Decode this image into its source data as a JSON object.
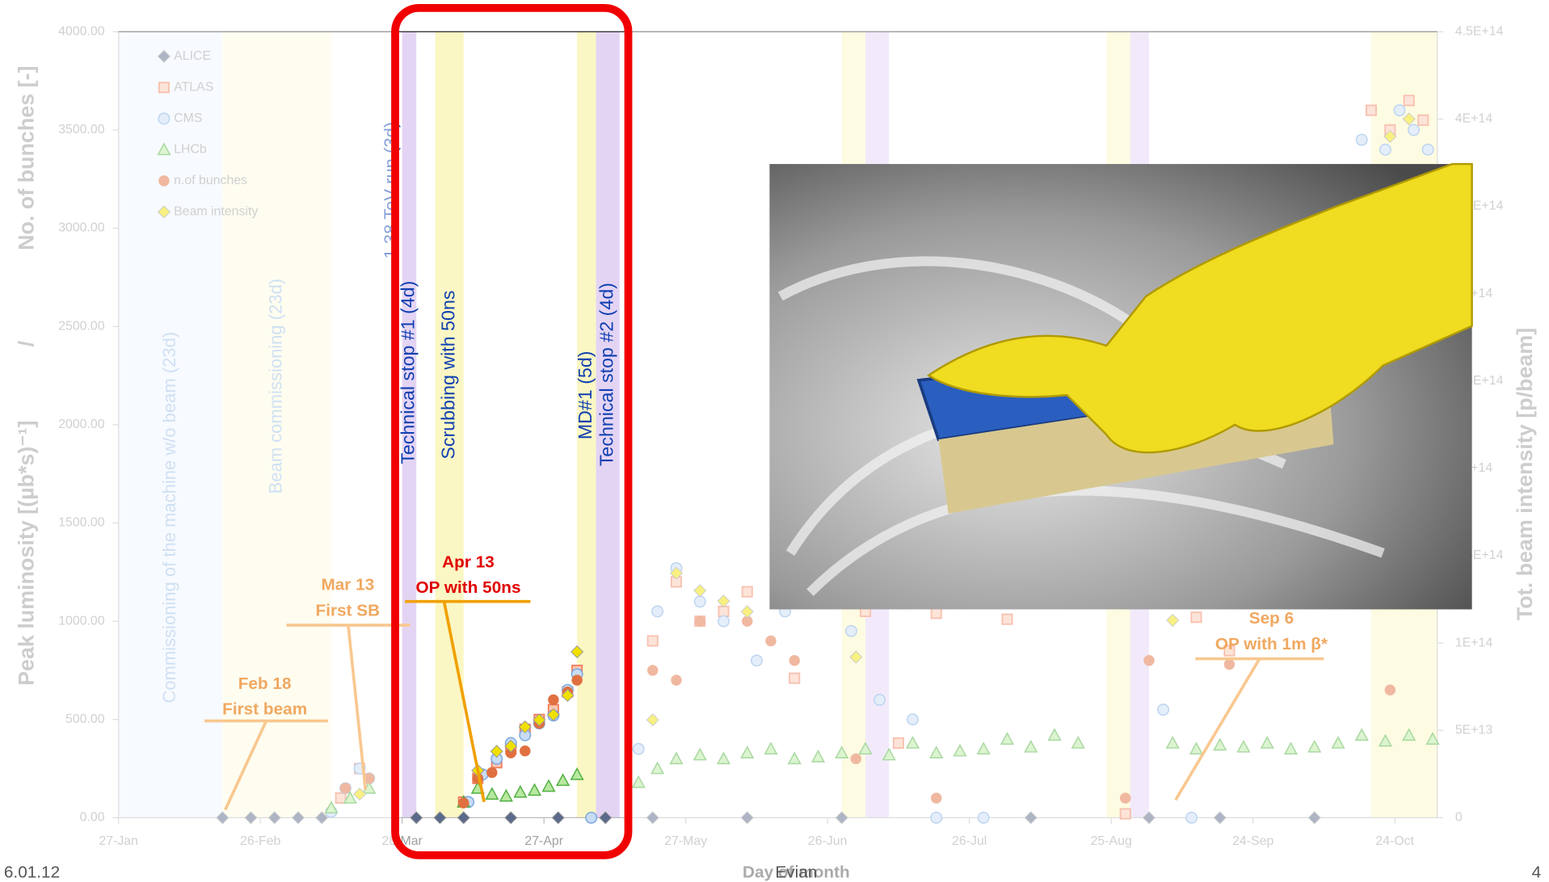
{
  "chart_data": {
    "type": "scatter",
    "x_label": "Day of month",
    "y_label": "Peak luminosity [(µb*s)⁻¹]",
    "y_label_separator": "/",
    "y_label_2": "No. of bunches [-]",
    "y2_label": "Tot. beam intensity [p/beam]",
    "xlim": [
      27,
      306
    ],
    "xticks": [
      {
        "value": 27,
        "label": "27-Jan"
      },
      {
        "value": 57,
        "label": "26-Feb"
      },
      {
        "value": 87,
        "label": "28-Mar"
      },
      {
        "value": 117,
        "label": "27-Apr"
      },
      {
        "value": 147,
        "label": "27-May"
      },
      {
        "value": 177,
        "label": "26-Jun"
      },
      {
        "value": 207,
        "label": "26-Jul"
      },
      {
        "value": 237,
        "label": "25-Aug"
      },
      {
        "value": 267,
        "label": "24-Sep"
      },
      {
        "value": 297,
        "label": "24-Oct"
      }
    ],
    "ylim": [
      0,
      4000
    ],
    "yticks": [
      {
        "value": 0,
        "label": "0.00"
      },
      {
        "value": 500,
        "label": "500.00"
      },
      {
        "value": 1000,
        "label": "1000.00"
      },
      {
        "value": 1500,
        "label": "1500.00"
      },
      {
        "value": 2000,
        "label": "2000.00"
      },
      {
        "value": 2500,
        "label": "2500.00"
      },
      {
        "value": 3000,
        "label": "3000.00"
      },
      {
        "value": 3500,
        "label": "3500.00"
      },
      {
        "value": 4000,
        "label": "4000.00"
      }
    ],
    "y2lim": [
      0,
      450000000000000.0
    ],
    "y2ticks": [
      {
        "value": 0,
        "label": "0"
      },
      {
        "value": 50000000000000.0,
        "label": "5E+13"
      },
      {
        "value": 100000000000000.0,
        "label": "1E+14"
      },
      {
        "value": 150000000000000.0,
        "label": "1.5E+14"
      },
      {
        "value": 200000000000000.0,
        "label": "2E+14"
      },
      {
        "value": 250000000000000.0,
        "label": "2.5E+14"
      },
      {
        "value": 300000000000000.0,
        "label": "3E+14"
      },
      {
        "value": 350000000000000.0,
        "label": "3.5E+14"
      },
      {
        "value": 400000000000000.0,
        "label": "4E+14"
      },
      {
        "value": 450000000000000.0,
        "label": "4.5E+14"
      }
    ],
    "grid": false,
    "legend": "upper left",
    "series": [
      {
        "name": "ALICE",
        "marker": "diamond",
        "color": "#5b6a8a",
        "x": [
          49,
          55,
          60,
          65,
          70,
          90,
          95,
          100,
          110,
          120,
          130,
          140,
          160,
          180,
          200,
          220,
          245,
          260,
          280
        ],
        "values": [
          0,
          0,
          0,
          0,
          0,
          0,
          0,
          0,
          0,
          0,
          0,
          0,
          0,
          0,
          0,
          0,
          0,
          0,
          0
        ]
      },
      {
        "name": "ATLAS",
        "marker": "square",
        "color": "#f08060",
        "x": [
          74,
          78,
          100,
          103,
          107,
          110,
          113,
          116,
          119,
          122,
          124,
          140,
          145,
          150,
          155,
          160,
          170,
          185,
          192,
          200,
          215,
          240,
          255,
          262,
          292,
          296,
          300,
          303
        ],
        "values": [
          100,
          250,
          80,
          200,
          280,
          350,
          450,
          500,
          550,
          640,
          750,
          900,
          1200,
          1000,
          1050,
          1150,
          710,
          1050,
          380,
          1040,
          1010,
          20,
          1020,
          850,
          3600,
          3500,
          3650,
          3550
        ]
      },
      {
        "name": "CMS",
        "marker": "circle",
        "color": "#7aa8e0",
        "x": [
          72,
          75,
          78,
          80,
          101,
          104,
          107,
          110,
          113,
          116,
          119,
          122,
          124,
          127,
          137,
          141,
          145,
          150,
          155,
          162,
          168,
          182,
          188,
          195,
          200,
          210,
          248,
          254,
          290,
          295,
          298,
          301,
          304
        ],
        "values": [
          30,
          150,
          250,
          200,
          80,
          220,
          300,
          380,
          420,
          480,
          520,
          650,
          730,
          0,
          350,
          1050,
          1270,
          1100,
          1000,
          800,
          1050,
          950,
          600,
          500,
          0,
          0,
          550,
          0,
          3450,
          3400,
          3600,
          3500,
          3400
        ]
      },
      {
        "name": "LHCb",
        "marker": "triangle",
        "color": "#50b040",
        "x": [
          72,
          76,
          80,
          100,
          103,
          106,
          109,
          112,
          115,
          118,
          121,
          124,
          137,
          141,
          145,
          150,
          155,
          160,
          165,
          170,
          175,
          180,
          185,
          190,
          195,
          200,
          205,
          210,
          215,
          220,
          225,
          230,
          250,
          255,
          260,
          265,
          270,
          275,
          280,
          285,
          290,
          295,
          300,
          305
        ],
        "values": [
          50,
          100,
          150,
          80,
          150,
          120,
          110,
          130,
          140,
          160,
          190,
          220,
          180,
          250,
          300,
          320,
          300,
          330,
          350,
          300,
          310,
          330,
          350,
          320,
          380,
          330,
          340,
          350,
          400,
          360,
          420,
          380,
          380,
          350,
          370,
          360,
          380,
          350,
          360,
          380,
          420,
          390,
          420,
          400
        ]
      },
      {
        "name": "n.of bunches",
        "marker": "dot",
        "color": "#e07040",
        "x": [
          75,
          80,
          100,
          103,
          106,
          110,
          113,
          116,
          119,
          122,
          124,
          140,
          145,
          150,
          160,
          165,
          170,
          183,
          200,
          240,
          245,
          262,
          296
        ],
        "values": [
          150,
          200,
          75,
          200,
          230,
          330,
          340,
          480,
          600,
          640,
          700,
          750,
          700,
          1000,
          1000,
          900,
          800,
          300,
          100,
          100,
          800,
          780,
          650
        ]
      },
      {
        "name": "Beam intensity",
        "marker": "diamond",
        "color": "#f0e000",
        "axis": "y2",
        "x": [
          78,
          103,
          107,
          110,
          113,
          116,
          119,
          122,
          124,
          140,
          145,
          150,
          155,
          160,
          183,
          250,
          296,
          300
        ],
        "values": [
          13500000000000.0,
          27000000000000.0,
          38000000000000.0,
          41000000000000.0,
          52000000000000.0,
          56000000000000.0,
          59000000000000.0,
          70000000000000.0,
          95000000000000.0,
          56000000000000.0,
          140000000000000.0,
          130000000000000.0,
          124000000000000.0,
          118000000000000.0,
          92000000000000.0,
          113000000000000.0,
          390000000000000.0,
          400000000000000.0
        ]
      }
    ],
    "shaded_periods": [
      {
        "label": "Commissioning of the machine w/o beam (23d)",
        "start": 27,
        "end": 49,
        "color": "#eef4fc"
      },
      {
        "label": "Beam commissioning (23d)",
        "start": 49,
        "end": 72,
        "color": "#fdfbe0"
      },
      {
        "label": "Technical stop #1 (4d)",
        "start": 87,
        "end": 90,
        "color": "#e4d4f4"
      },
      {
        "label": "Scrubbing with 50ns",
        "start": 94,
        "end": 100,
        "color": "#fbf7c4"
      },
      {
        "label": "MD#1 (5d)",
        "start": 124,
        "end": 128,
        "color": "#fbf7c4"
      },
      {
        "label": "Technical stop #2 (4d)",
        "start": 128,
        "end": 133,
        "color": "#e4d4f4"
      },
      {
        "start": 180,
        "end": 185,
        "color": "#fbf7c4"
      },
      {
        "start": 185,
        "end": 190,
        "color": "#e4d4f4"
      },
      {
        "start": 236,
        "end": 241,
        "color": "#fbf7c4"
      },
      {
        "start": 241,
        "end": 245,
        "color": "#e4d4f4"
      },
      {
        "start": 292,
        "end": 306,
        "color": "#fbf7c4"
      }
    ],
    "extra_period_label": "1.38 TeV run (3d)",
    "annotations": [
      [
        "Feb 18",
        "First beam"
      ],
      [
        "Mar 13",
        "First SB"
      ],
      [
        "Apr 13",
        "OP with 50ns"
      ],
      [
        "Sep 6",
        "OP with 1m β*"
      ]
    ]
  },
  "footer": {
    "date": "6.01.12",
    "place": "Evian",
    "page": "4"
  }
}
